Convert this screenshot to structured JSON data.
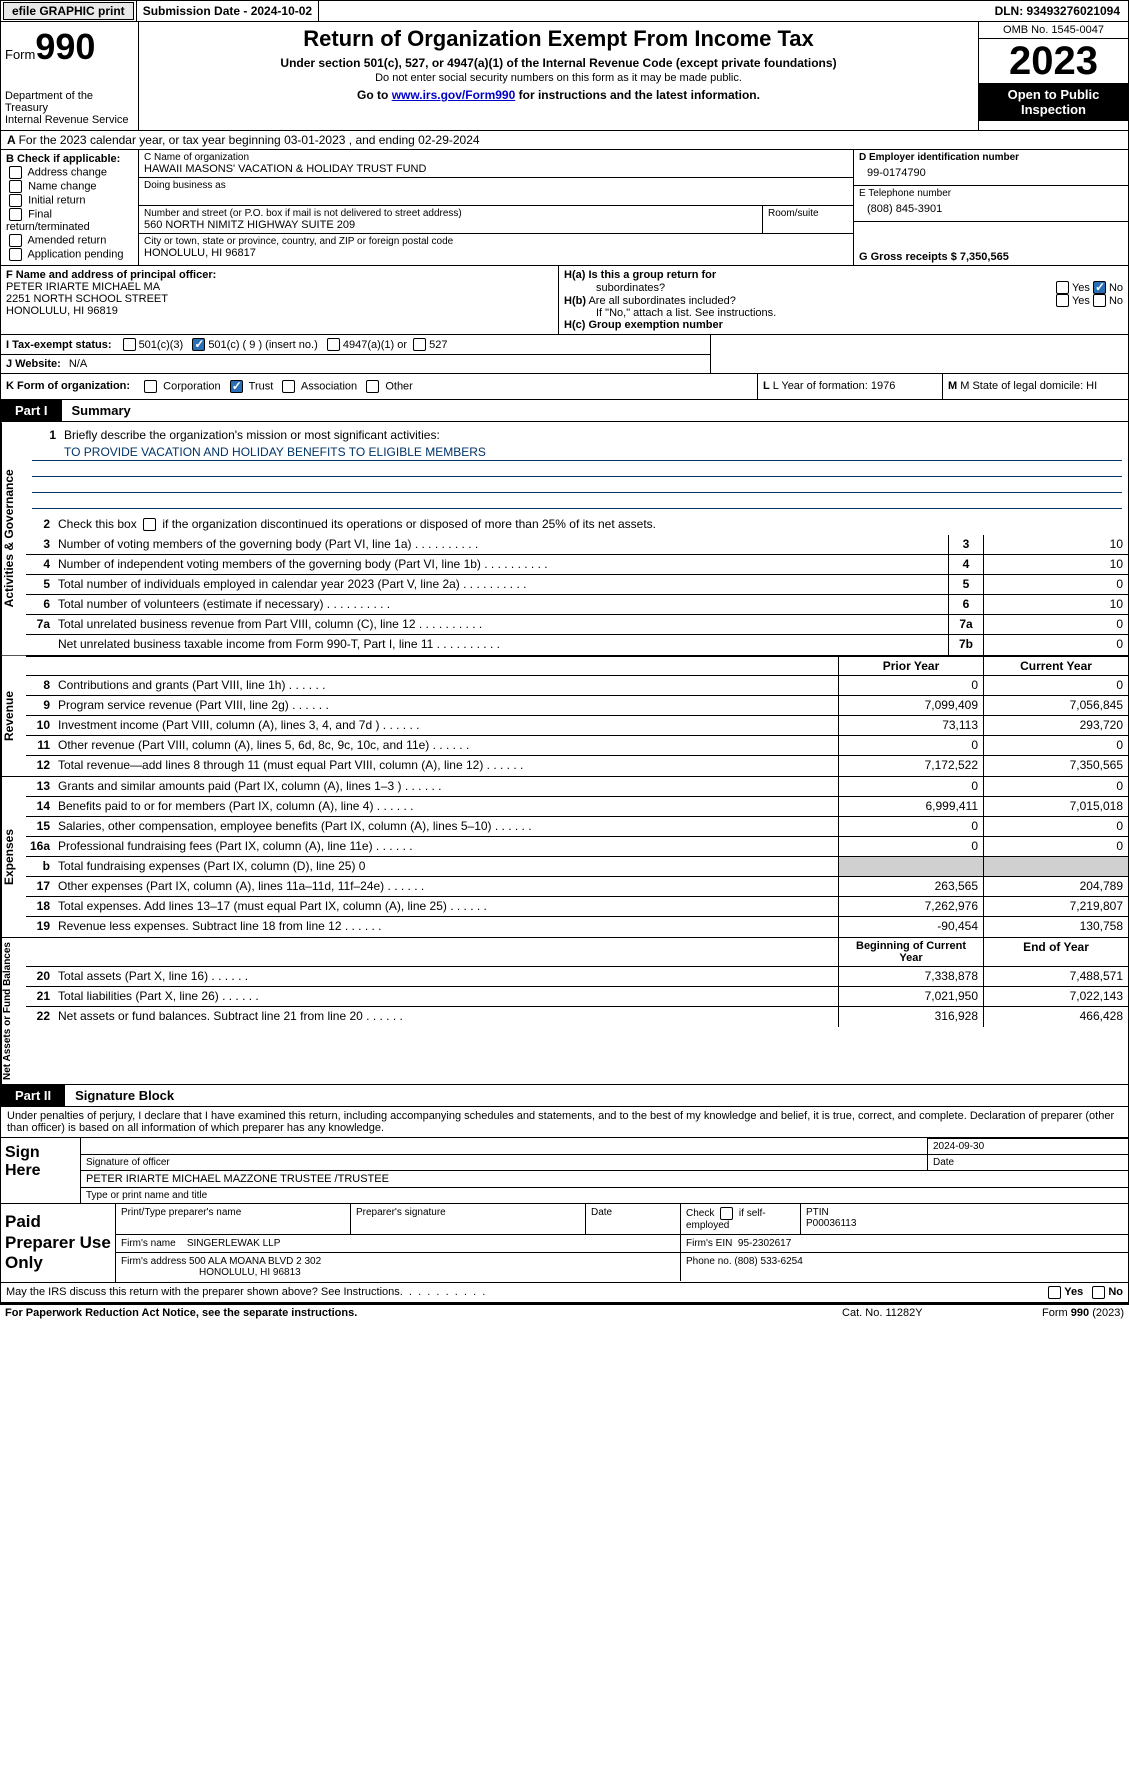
{
  "topbar": {
    "efile_label": "efile GRAPHIC print",
    "submission_label": "Submission Date - 2024-10-02",
    "dln_label": "DLN: 93493276021094"
  },
  "header": {
    "form_prefix": "Form",
    "form_number": "990",
    "dept": "Department of the Treasury",
    "irs": "Internal Revenue Service",
    "title": "Return of Organization Exempt From Income Tax",
    "sub1": "Under section 501(c), 527, or 4947(a)(1) of the Internal Revenue Code (except private foundations)",
    "sub2": "Do not enter social security numbers on this form as it may be made public.",
    "sub3_pre": "Go to ",
    "sub3_link": "www.irs.gov/Form990",
    "sub3_post": " for instructions and the latest information.",
    "omb": "OMB No. 1545-0047",
    "year": "2023",
    "inspection": "Open to Public Inspection"
  },
  "line_a": "For the 2023 calendar year, or tax year beginning 03-01-2023   , and ending 02-29-2024",
  "box_b": {
    "title": "B Check if applicable:",
    "items": [
      "Address change",
      "Name change",
      "Initial return",
      "Final return/terminated",
      "Amended return",
      "Application pending"
    ]
  },
  "box_c": {
    "name_label": "C Name of organization",
    "name_value": "HAWAII MASONS' VACATION & HOLIDAY TRUST FUND",
    "dba_label": "Doing business as",
    "addr_label": "Number and street (or P.O. box if mail is not delivered to street address)",
    "addr_value": "560 NORTH NIMITZ HIGHWAY SUITE 209",
    "room_label": "Room/suite",
    "city_label": "City or town, state or province, country, and ZIP or foreign postal code",
    "city_value": "HONOLULU, HI  96817"
  },
  "box_d": {
    "ein_label": "D Employer identification number",
    "ein_value": "99-0174790",
    "phone_label": "E Telephone number",
    "phone_value": "(808) 845-3901",
    "gross_label": "G Gross receipts $ 7,350,565"
  },
  "box_f": {
    "label": "F  Name and address of principal officer:",
    "name": "PETER IRIARTE MICHAEL MA",
    "addr1": "2251 NORTH SCHOOL STREET",
    "addr2": "HONOLULU, HI  96819"
  },
  "box_h": {
    "ha_label": "H(a)  Is this a group return for",
    "ha_sub": "subordinates?",
    "hb_label": "H(b)  Are all subordinates included?",
    "hb_note": "If \"No,\" attach a list. See instructions.",
    "hc_label": "H(c)  Group exemption number",
    "yes": "Yes",
    "no": "No"
  },
  "box_i": {
    "label": "I   Tax-exempt status:",
    "opt1": "501(c)(3)",
    "opt2": "501(c) ( 9 ) (insert no.)",
    "opt3": "4947(a)(1) or",
    "opt4": "527"
  },
  "box_j": {
    "label": "J   Website:",
    "value": "N/A"
  },
  "box_k": {
    "label": "K Form of organization:",
    "opts": [
      "Corporation",
      "Trust",
      "Association",
      "Other"
    ]
  },
  "box_l": "L Year of formation: 1976",
  "box_m": "M State of legal domicile: HI",
  "part1": {
    "tab": "Part I",
    "title": "Summary"
  },
  "mission": {
    "line1_label": "Briefly describe the organization's mission or most significant activities:",
    "line1_value": "TO PROVIDE VACATION AND HOLIDAY BENEFITS TO ELIGIBLE MEMBERS"
  },
  "line2": "Check this box      if the organization discontinued its operations or disposed of more than 25% of its net assets.",
  "governance": [
    {
      "num": "3",
      "text": "Number of voting members of the governing body (Part VI, line 1a)",
      "code": "3",
      "val": "10"
    },
    {
      "num": "4",
      "text": "Number of independent voting members of the governing body (Part VI, line 1b)",
      "code": "4",
      "val": "10"
    },
    {
      "num": "5",
      "text": "Total number of individuals employed in calendar year 2023 (Part V, line 2a)",
      "code": "5",
      "val": "0"
    },
    {
      "num": "6",
      "text": "Total number of volunteers (estimate if necessary)",
      "code": "6",
      "val": "10"
    },
    {
      "num": "7a",
      "text": "Total unrelated business revenue from Part VIII, column (C), line 12",
      "code": "7a",
      "val": "0"
    },
    {
      "num": "",
      "text": "Net unrelated business taxable income from Form 990-T, Part I, line 11",
      "code": "7b",
      "val": "0"
    }
  ],
  "col_headers": {
    "prior": "Prior Year",
    "current": "Current Year"
  },
  "revenue": [
    {
      "num": "8",
      "text": "Contributions and grants (Part VIII, line 1h)",
      "prior": "0",
      "current": "0"
    },
    {
      "num": "9",
      "text": "Program service revenue (Part VIII, line 2g)",
      "prior": "7,099,409",
      "current": "7,056,845"
    },
    {
      "num": "10",
      "text": "Investment income (Part VIII, column (A), lines 3, 4, and 7d )",
      "prior": "73,113",
      "current": "293,720"
    },
    {
      "num": "11",
      "text": "Other revenue (Part VIII, column (A), lines 5, 6d, 8c, 9c, 10c, and 11e)",
      "prior": "0",
      "current": "0"
    },
    {
      "num": "12",
      "text": "Total revenue—add lines 8 through 11 (must equal Part VIII, column (A), line 12)",
      "prior": "7,172,522",
      "current": "7,350,565"
    }
  ],
  "expenses": [
    {
      "num": "13",
      "text": "Grants and similar amounts paid (Part IX, column (A), lines 1–3 )",
      "prior": "0",
      "current": "0"
    },
    {
      "num": "14",
      "text": "Benefits paid to or for members (Part IX, column (A), line 4)",
      "prior": "6,999,411",
      "current": "7,015,018"
    },
    {
      "num": "15",
      "text": "Salaries, other compensation, employee benefits (Part IX, column (A), lines 5–10)",
      "prior": "0",
      "current": "0"
    },
    {
      "num": "16a",
      "text": "Professional fundraising fees (Part IX, column (A), line 11e)",
      "prior": "0",
      "current": "0"
    },
    {
      "num": "b",
      "text": "Total fundraising expenses (Part IX, column (D), line 25) 0",
      "prior": "",
      "current": "",
      "grey": true
    },
    {
      "num": "17",
      "text": "Other expenses (Part IX, column (A), lines 11a–11d, 11f–24e)",
      "prior": "263,565",
      "current": "204,789"
    },
    {
      "num": "18",
      "text": "Total expenses. Add lines 13–17 (must equal Part IX, column (A), line 25)",
      "prior": "7,262,976",
      "current": "7,219,807"
    },
    {
      "num": "19",
      "text": "Revenue less expenses. Subtract line 18 from line 12",
      "prior": "-90,454",
      "current": "130,758"
    }
  ],
  "net_headers": {
    "begin": "Beginning of Current Year",
    "end": "End of Year"
  },
  "netassets": [
    {
      "num": "20",
      "text": "Total assets (Part X, line 16)",
      "prior": "7,338,878",
      "current": "7,488,571"
    },
    {
      "num": "21",
      "text": "Total liabilities (Part X, line 26)",
      "prior": "7,021,950",
      "current": "7,022,143"
    },
    {
      "num": "22",
      "text": "Net assets or fund balances. Subtract line 21 from line 20",
      "prior": "316,928",
      "current": "466,428"
    }
  ],
  "part2": {
    "tab": "Part II",
    "title": "Signature Block"
  },
  "sig_declare": "Under penalties of perjury, I declare that I have examined this return, including accompanying schedules and statements, and to the best of my knowledge and belief, it is true, correct, and complete. Declaration of preparer (other than officer) is based on all information of which preparer has any knowledge.",
  "sign": {
    "label": "Sign Here",
    "date": "2024-09-30",
    "sig_label": "Signature of officer",
    "date_label": "Date",
    "name": "PETER IRIARTE MICHAEL MAZZONE  TRUSTEE /TRUSTEE",
    "name_label": "Type or print name and title"
  },
  "paid": {
    "label": "Paid Preparer Use Only",
    "h1": "Print/Type preparer's name",
    "h2": "Preparer's signature",
    "h3": "Date",
    "h4_pre": "Check",
    "h4_post": "if self-employed",
    "h5": "PTIN",
    "ptin": "P00036113",
    "firm_label": "Firm's name",
    "firm_name": "SINGERLEWAK LLP",
    "firm_ein_label": "Firm's EIN",
    "firm_ein": "95-2302617",
    "firm_addr_label": "Firm's address",
    "firm_addr1": "500 ALA MOANA BLVD 2 302",
    "firm_addr2": "HONOLULU, HI  96813",
    "phone_label": "Phone no.",
    "phone": "(808) 533-6254"
  },
  "discuss": {
    "text": "May the IRS discuss this return with the preparer shown above? See Instructions.",
    "yes": "Yes",
    "no": "No"
  },
  "footer": {
    "left": "For Paperwork Reduction Act Notice, see the separate instructions.",
    "mid": "Cat. No. 11282Y",
    "right_pre": "Form ",
    "right_num": "990",
    "right_post": " (2023)"
  },
  "colors": {
    "link": "#0000cc",
    "mission_line": "#003366",
    "checkbox": "#2a6fb5"
  }
}
